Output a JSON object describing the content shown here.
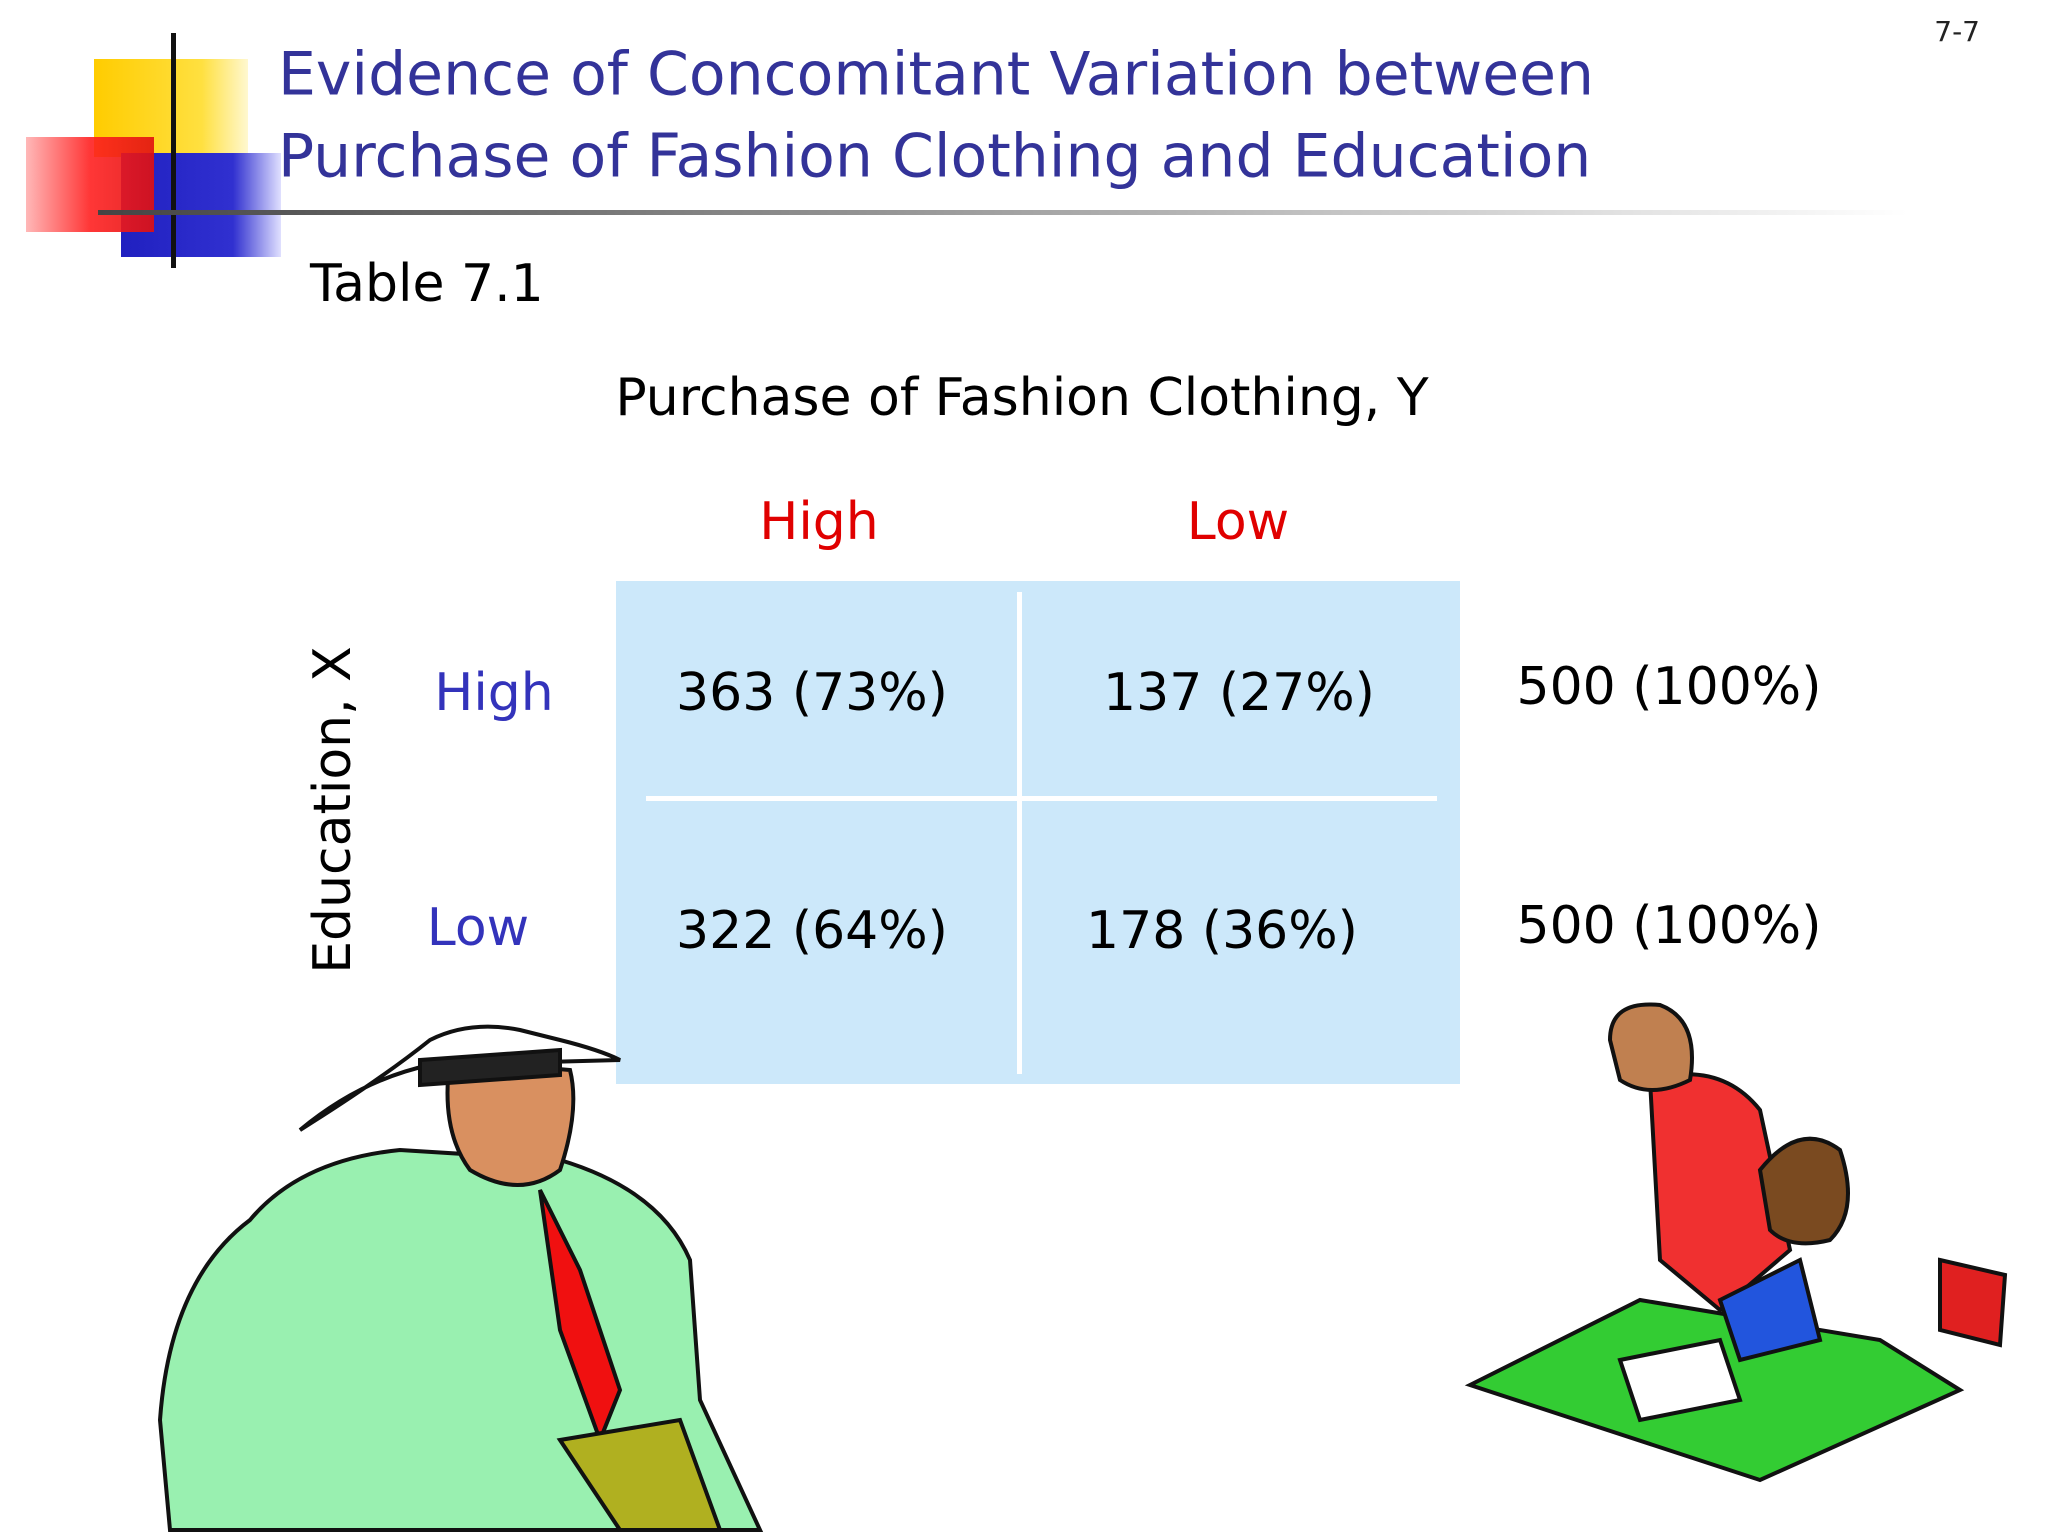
{
  "slide_number": "7-7",
  "title": [
    "Evidence of Concomitant Variation between",
    "Purchase of Fashion Clothing and Education"
  ],
  "table": {
    "caption": "Table 7.1",
    "column_header": "Purchase of Fashion Clothing, Y",
    "columns": [
      "High",
      "Low"
    ],
    "row_header": "Education, X",
    "rows": [
      {
        "label": "High",
        "cells": [
          "363 (73%)",
          "137 (27%)"
        ],
        "total": "500 (100%)"
      },
      {
        "label": "Low",
        "cells": [
          "322 (64%)",
          "178 (36%)"
        ],
        "total": "500 (100%)"
      }
    ]
  }
}
